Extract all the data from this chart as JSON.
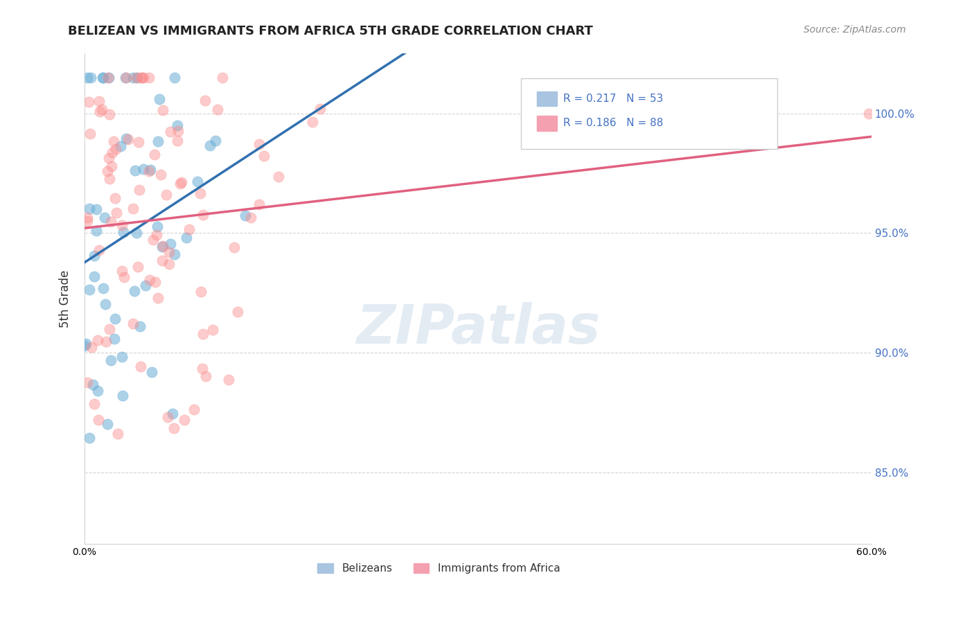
{
  "title": "BELIZEAN VS IMMIGRANTS FROM AFRICA 5TH GRADE CORRELATION CHART",
  "source": "Source: ZipAtlas.com",
  "ylabel_left": "5th Grade",
  "right_yticks": [
    85.0,
    90.0,
    95.0,
    100.0
  ],
  "blue_R": 0.217,
  "blue_N": 53,
  "pink_R": 0.186,
  "pink_N": 88,
  "blue_color": "#6baed6",
  "pink_color": "#fc8d8d",
  "blue_line_color": "#3070b0",
  "pink_line_color": "#e06080",
  "legend_blue_color": "#a8c4e0",
  "legend_pink_color": "#f4a0b0",
  "watermark_color": "#c8d8e8",
  "xlim": [
    0.0,
    0.6
  ],
  "ylim": [
    82.0,
    102.5
  ]
}
